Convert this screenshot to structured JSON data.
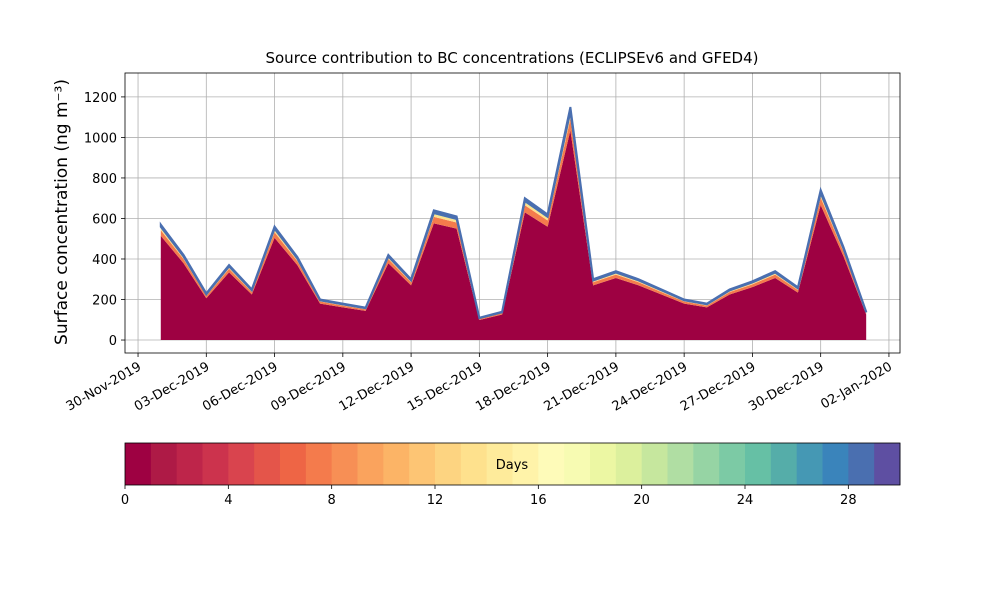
{
  "chart_data": {
    "type": "stacked_area",
    "title": "Source contribution to BC concentrations (ECLIPSEv6 and GFED4)",
    "ylabel": "Surface concentration (ng m⁻³)",
    "x": [
      "2019-12-01",
      "2019-12-02",
      "2019-12-03",
      "2019-12-04",
      "2019-12-05",
      "2019-12-06",
      "2019-12-07",
      "2019-12-08",
      "2019-12-09",
      "2019-12-10",
      "2019-12-11",
      "2019-12-12",
      "2019-12-13",
      "2019-12-14",
      "2019-12-15",
      "2019-12-16",
      "2019-12-17",
      "2019-12-18",
      "2019-12-19",
      "2019-12-20",
      "2019-12-21",
      "2019-12-22",
      "2019-12-23",
      "2019-12-24",
      "2019-12-25",
      "2019-12-26",
      "2019-12-27",
      "2019-12-28",
      "2019-12-29",
      "2019-12-30",
      "2019-12-31",
      "2020-01-01"
    ],
    "series": [
      {
        "color": "#9e0142",
        "values": [
          514,
          379,
          206,
          334,
          225,
          504,
          370,
          180,
          161,
          144,
          379,
          270,
          576,
          550,
          99,
          126,
          630,
          559,
          1035,
          270,
          306,
          270,
          225,
          180,
          161,
          225,
          261,
          306,
          234,
          666,
          414,
          126
        ]
      },
      {
        "color": "#f47b4c",
        "values": [
          28,
          21,
          12,
          18,
          12,
          28,
          20,
          10,
          9,
          8,
          21,
          15,
          32,
          30,
          6,
          7,
          35,
          31,
          57,
          15,
          17,
          15,
          12,
          10,
          9,
          12,
          14,
          17,
          13,
          37,
          23,
          7
        ]
      },
      {
        "color": "#fee18d",
        "values": [
          11,
          8,
          5,
          7,
          5,
          11,
          8,
          4,
          4,
          3,
          8,
          6,
          13,
          12,
          2,
          3,
          14,
          12,
          23,
          6,
          7,
          6,
          5,
          4,
          4,
          5,
          6,
          7,
          5,
          15,
          9,
          3
        ]
      },
      {
        "color": "#96d4a4",
        "values": [
          6,
          4,
          2,
          4,
          3,
          6,
          4,
          2,
          2,
          2,
          4,
          3,
          6,
          6,
          1,
          1,
          7,
          6,
          12,
          3,
          3,
          3,
          3,
          2,
          2,
          3,
          3,
          3,
          3,
          7,
          5,
          1
        ]
      },
      {
        "color": "#4a6fb0",
        "values": [
          11,
          8,
          5,
          7,
          5,
          11,
          8,
          4,
          4,
          3,
          8,
          6,
          13,
          12,
          2,
          3,
          14,
          12,
          23,
          6,
          7,
          6,
          5,
          4,
          4,
          5,
          6,
          7,
          5,
          15,
          9,
          3
        ]
      }
    ],
    "xlim": [
      "2019-11-29T10:15:00Z",
      "2020-01-02T11:40:00Z"
    ],
    "xticks": [
      {
        "value": "2019-11-30",
        "label": "30-Nov-2019"
      },
      {
        "value": "2019-12-03",
        "label": "03-Dec-2019"
      },
      {
        "value": "2019-12-06",
        "label": "06-Dec-2019"
      },
      {
        "value": "2019-12-09",
        "label": "09-Dec-2019"
      },
      {
        "value": "2019-12-12",
        "label": "12-Dec-2019"
      },
      {
        "value": "2019-12-15",
        "label": "15-Dec-2019"
      },
      {
        "value": "2019-12-18",
        "label": "18-Dec-2019"
      },
      {
        "value": "2019-12-21",
        "label": "21-Dec-2019"
      },
      {
        "value": "2019-12-24",
        "label": "24-Dec-2019"
      },
      {
        "value": "2019-12-27",
        "label": "27-Dec-2019"
      },
      {
        "value": "2019-12-30",
        "label": "30-Dec-2019"
      },
      {
        "value": "2020-01-02",
        "label": "02-Jan-2020"
      }
    ],
    "ylim": [
      -64,
      1318
    ],
    "yticks": [
      0,
      200,
      400,
      600,
      800,
      1000,
      1200
    ],
    "grid": true,
    "colorbar": {
      "label": "Days",
      "lim": [
        0,
        30
      ],
      "ticks": [
        0,
        4,
        8,
        12,
        16,
        20,
        24,
        28
      ],
      "colors": [
        "#9e0142",
        "#ae1a46",
        "#be254a",
        "#cc334d",
        "#d9444e",
        "#e4554a",
        "#ee6545",
        "#f47b4c",
        "#f78f55",
        "#faa35d",
        "#fcb466",
        "#fdc574",
        "#fdd481",
        "#fee18d",
        "#feeb9b",
        "#fff3a9",
        "#fefbb9",
        "#f7fbb2",
        "#ecf7a3",
        "#dcf09d",
        "#c6e79e",
        "#b0dea3",
        "#96d4a4",
        "#7ccaa5",
        "#66c0a5",
        "#55ada9",
        "#4598b4",
        "#3a84bb",
        "#4a6fb0",
        "#5e4fa2"
      ]
    }
  }
}
